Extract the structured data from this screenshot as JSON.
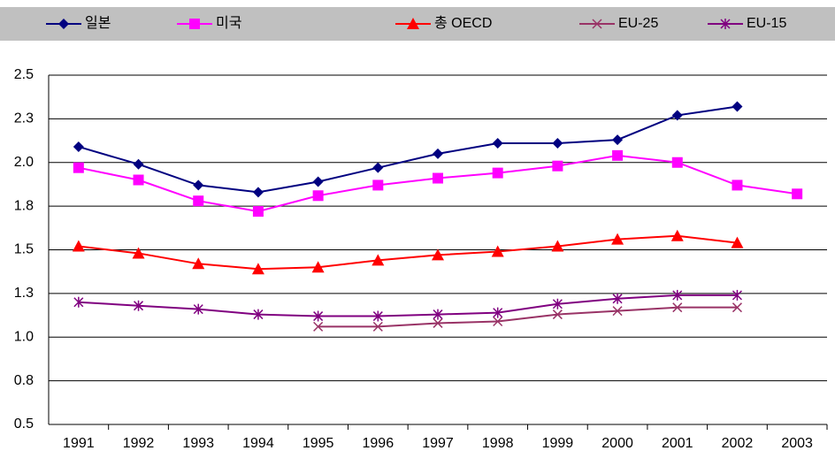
{
  "chart_data": {
    "type": "line",
    "categories": [
      "1991",
      "1992",
      "1993",
      "1994",
      "1995",
      "1996",
      "1997",
      "1998",
      "1999",
      "2000",
      "2001",
      "2002",
      "2003"
    ],
    "series": [
      {
        "name": "일본",
        "color": "#000080",
        "marker": "diamond",
        "values": [
          2.09,
          1.99,
          1.87,
          1.83,
          1.89,
          1.97,
          2.05,
          2.11,
          2.11,
          2.13,
          2.27,
          2.32,
          null
        ]
      },
      {
        "name": "미국",
        "color": "#FF00FF",
        "marker": "square",
        "values": [
          1.97,
          1.9,
          1.78,
          1.72,
          1.81,
          1.87,
          1.91,
          1.94,
          1.98,
          2.04,
          2.0,
          1.87,
          1.82
        ]
      },
      {
        "name": "총 OECD",
        "color": "#FF0000",
        "marker": "triangle",
        "values": [
          1.52,
          1.48,
          1.42,
          1.39,
          1.4,
          1.44,
          1.47,
          1.49,
          1.52,
          1.56,
          1.58,
          1.54,
          null
        ]
      },
      {
        "name": "EU-25",
        "color": "#993366",
        "marker": "x",
        "values": [
          null,
          null,
          null,
          null,
          1.06,
          1.06,
          1.08,
          1.09,
          1.13,
          1.15,
          1.17,
          1.17,
          null
        ]
      },
      {
        "name": "EU-15",
        "color": "#800080",
        "marker": "star",
        "values": [
          1.2,
          1.18,
          1.16,
          1.13,
          1.12,
          1.12,
          1.13,
          1.14,
          1.19,
          1.22,
          1.24,
          1.24,
          null
        ]
      }
    ],
    "ylim": [
      0.5,
      2.5
    ],
    "yticks": [
      0.5,
      {
        "value": 0.75,
        "label": "0.8"
      },
      {
        "value": 1.0,
        "label": "1.0"
      },
      {
        "value": 1.25,
        "label": "1.3"
      },
      1.5,
      {
        "value": 1.75,
        "label": "1.8"
      },
      {
        "value": 2.0,
        "label": "2.0"
      },
      {
        "value": 2.25,
        "label": "2.3"
      },
      2.5
    ],
    "grid": true,
    "legend": "top"
  }
}
